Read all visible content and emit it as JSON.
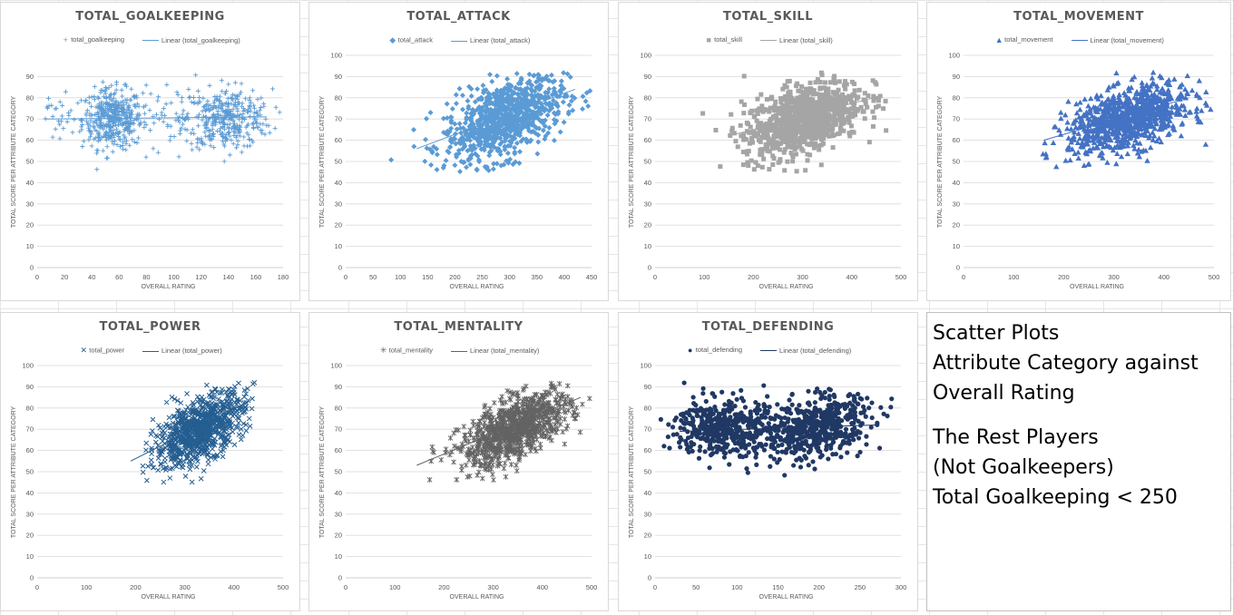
{
  "notes": {
    "line1": "Scatter Plots",
    "line2": "Attribute Category against",
    "line3": "Overall Rating",
    "line4": "The Rest Players",
    "line5": "(Not Goalkeepers)",
    "line6": "Total Goalkeeping < 250"
  },
  "chart_data": [
    {
      "type": "scatter",
      "title": "TOTAL_GOALKEEPING",
      "xlabel": "OVERALL RATING",
      "ylabel": "TOTAL SCORE PER ATTRIBUTE CATEGORY",
      "xlim": [
        0,
        180
      ],
      "ylim": [
        0,
        100
      ],
      "xticks": [
        0,
        20,
        40,
        60,
        80,
        100,
        120,
        140,
        160,
        180
      ],
      "yticks": [
        0,
        10,
        20,
        30,
        40,
        50,
        60,
        70,
        80,
        90
      ],
      "marker": "plus",
      "color": "#5b9bd5",
      "legend": [
        "total_goalkeeping",
        "Linear (total_goalkeeping)"
      ],
      "trendline": [
        [
          5,
          70
        ],
        [
          168,
          71
        ]
      ],
      "series": [
        {
          "name": "total_goalkeeping",
          "clusters": [
            {
              "cx": 55,
              "cy": 70,
              "sx": 11,
              "sy": 7,
              "n": 420
            },
            {
              "cx": 140,
              "cy": 70,
              "sx": 16,
              "sy": 7,
              "n": 330
            },
            {
              "cx": 100,
              "cy": 72,
              "sx": 25,
              "sy": 8,
              "n": 100
            },
            {
              "cx": 15,
              "cy": 70,
              "sx": 7,
              "sy": 6,
              "n": 25
            }
          ]
        }
      ]
    },
    {
      "type": "scatter",
      "title": "TOTAL_ATTACK",
      "xlabel": "OVERALL RATING",
      "ylabel": "TOTAL SCORE PER ATTRIBUTE CATEGORY",
      "xlim": [
        0,
        450
      ],
      "ylim": [
        0,
        100
      ],
      "xticks": [
        0,
        50,
        100,
        150,
        200,
        250,
        300,
        350,
        400,
        450
      ],
      "yticks": [
        0,
        10,
        20,
        30,
        40,
        50,
        60,
        70,
        80,
        90,
        100
      ],
      "marker": "diamond",
      "color": "#5b9bd5",
      "legend": [
        "total_attack",
        "Linear (total_attack)"
      ],
      "trendline": [
        [
          130,
          56
        ],
        [
          420,
          84
        ]
      ],
      "series": [
        {
          "name": "total_attack",
          "clusters": [
            {
              "cx": 290,
              "cy": 70,
              "sx": 55,
              "sy": 9,
              "n": 900,
              "slope": 0.1
            }
          ]
        }
      ]
    },
    {
      "type": "scatter",
      "title": "TOTAL_SKILL",
      "xlabel": "OVERALL RATING",
      "ylabel": "TOTAL SCORE PER ATTRIBUTE CATEGORY",
      "xlim": [
        0,
        500
      ],
      "ylim": [
        0,
        100
      ],
      "xticks": [
        0,
        100,
        200,
        300,
        400,
        500
      ],
      "yticks": [
        0,
        10,
        20,
        30,
        40,
        50,
        60,
        70,
        80,
        90,
        100
      ],
      "marker": "square",
      "color": "#a5a5a5",
      "legend": [
        "total_skill",
        "Linear (total_skill)"
      ],
      "trendline": [
        [
          150,
          62
        ],
        [
          460,
          81
        ]
      ],
      "series": [
        {
          "name": "total_skill",
          "clusters": [
            {
              "cx": 300,
              "cy": 70,
              "sx": 60,
              "sy": 8,
              "n": 900,
              "slope": 0.07
            }
          ]
        }
      ]
    },
    {
      "type": "scatter",
      "title": "TOTAL_MOVEMENT",
      "xlabel": "OVERALL RATING",
      "ylabel": "TOTAL SCORE PER ATTRIBUTE CATEGORY",
      "xlim": [
        0,
        500
      ],
      "ylim": [
        0,
        100
      ],
      "xticks": [
        0,
        100,
        200,
        300,
        400,
        500
      ],
      "yticks": [
        0,
        10,
        20,
        30,
        40,
        50,
        60,
        70,
        80,
        90,
        100
      ],
      "marker": "triangle",
      "color": "#4472c4",
      "legend": [
        "total_movement",
        "Linear (total_movement)"
      ],
      "trendline": [
        [
          160,
          60
        ],
        [
          450,
          80
        ]
      ],
      "series": [
        {
          "name": "total_movement",
          "clusters": [
            {
              "cx": 330,
              "cy": 70,
              "sx": 60,
              "sy": 7,
              "n": 900,
              "slope": 0.06
            }
          ]
        }
      ]
    },
    {
      "type": "scatter",
      "title": "TOTAL_POWER",
      "xlabel": "OVERALL RATING",
      "ylabel": "TOTAL SCORE PER ATTRIBUTE CATEGORY",
      "xlim": [
        0,
        500
      ],
      "ylim": [
        0,
        100
      ],
      "xticks": [
        0,
        100,
        200,
        300,
        400,
        500
      ],
      "yticks": [
        0,
        10,
        20,
        30,
        40,
        50,
        60,
        70,
        80,
        90,
        100
      ],
      "marker": "x",
      "color": "#255e91",
      "legend": [
        "total_power",
        "Linear (total_power)"
      ],
      "trendline": [
        [
          190,
          55
        ],
        [
          430,
          83
        ]
      ],
      "series": [
        {
          "name": "total_power",
          "clusters": [
            {
              "cx": 330,
              "cy": 70,
              "sx": 45,
              "sy": 7,
              "n": 900,
              "slope": 0.11
            }
          ]
        }
      ]
    },
    {
      "type": "scatter",
      "title": "TOTAL_MENTALITY",
      "xlabel": "OVERALL RATING",
      "ylabel": "TOTAL SCORE PER ATTRIBUTE CATEGORY",
      "xlim": [
        0,
        450
      ],
      "ylim": [
        0,
        100
      ],
      "xticks": [
        0,
        100,
        200,
        300,
        400,
        500
      ],
      "yticks": [
        0,
        10,
        20,
        30,
        40,
        50,
        60,
        70,
        80,
        90,
        100
      ],
      "marker": "star",
      "color": "#636363",
      "legend": [
        "total_mentality",
        "Linear (total_mentality)"
      ],
      "trendline": [
        [
          130,
          53
        ],
        [
          430,
          85
        ]
      ],
      "series": [
        {
          "name": "total_mentality",
          "clusters": [
            {
              "cx": 310,
              "cy": 70,
              "sx": 50,
              "sy": 7,
              "n": 900,
              "slope": 0.11
            }
          ]
        }
      ]
    },
    {
      "type": "scatter",
      "title": "TOTAL_DEFENDING",
      "xlabel": "OVERALL RATING",
      "ylabel": "TOTAL SCORE PER ATTRIBUTE CATEGORY",
      "xlim": [
        0,
        300
      ],
      "ylim": [
        0,
        100
      ],
      "xticks": [
        0,
        50,
        100,
        150,
        200,
        250,
        300
      ],
      "yticks": [
        0,
        10,
        20,
        30,
        40,
        50,
        60,
        70,
        80,
        90,
        100
      ],
      "marker": "circle",
      "color": "#203864",
      "legend": [
        "total_defending",
        "Linear (total_defending)"
      ],
      "trendline": [
        [
          30,
          69
        ],
        [
          270,
          72
        ]
      ],
      "series": [
        {
          "name": "total_defending",
          "clusters": [
            {
              "cx": 75,
              "cy": 71,
              "sx": 25,
              "sy": 7,
              "n": 350
            },
            {
              "cx": 200,
              "cy": 71,
              "sx": 32,
              "sy": 7,
              "n": 450,
              "slope": 0.08
            },
            {
              "cx": 140,
              "cy": 70,
              "sx": 30,
              "sy": 8,
              "n": 150
            }
          ]
        }
      ]
    }
  ]
}
